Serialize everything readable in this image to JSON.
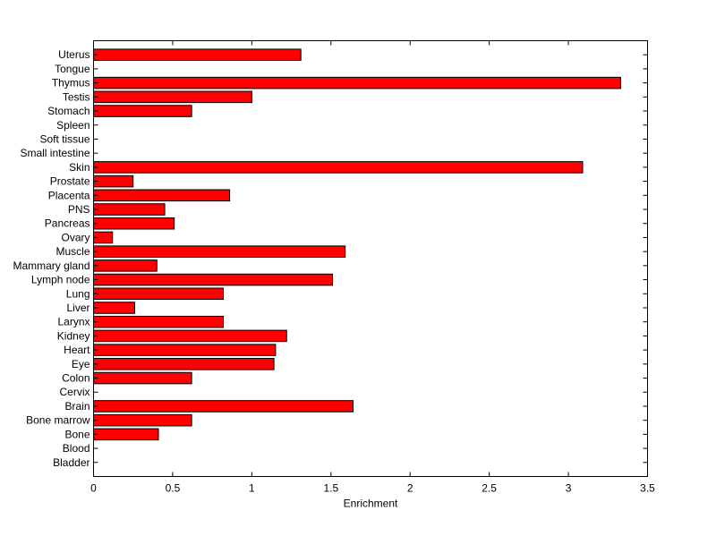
{
  "chart_data": {
    "type": "bar",
    "orientation": "horizontal",
    "title": "",
    "xlabel": "Enrichment",
    "ylabel": "",
    "xlim": [
      0,
      3.5
    ],
    "xticks": [
      0,
      0.5,
      1,
      1.5,
      2,
      2.5,
      3,
      3.5
    ],
    "xtick_labels": [
      "0",
      "0.5",
      "1",
      "1.5",
      "2",
      "2.5",
      "3",
      "3.5"
    ],
    "grid": false,
    "legend": "none",
    "categories": [
      "Bladder",
      "Blood",
      "Bone",
      "Bone marrow",
      "Brain",
      "Cervix",
      "Colon",
      "Eye",
      "Heart",
      "Kidney",
      "Larynx",
      "Liver",
      "Lung",
      "Lymph node",
      "Mammary gland",
      "Muscle",
      "Ovary",
      "Pancreas",
      "PNS",
      "Placenta",
      "Prostate",
      "Skin",
      "Small intestine",
      "Soft tissue",
      "Spleen",
      "Stomach",
      "Testis",
      "Thymus",
      "Tongue",
      "Uterus"
    ],
    "values": [
      0,
      0,
      0.41,
      0.62,
      1.64,
      0,
      0.62,
      1.14,
      1.15,
      1.22,
      0.82,
      0.26,
      0.82,
      1.51,
      0.4,
      1.59,
      0.12,
      0.51,
      0.45,
      0.86,
      0.25,
      3.09,
      0,
      0,
      0,
      0.62,
      1.0,
      3.33,
      0,
      1.31
    ],
    "bar_color": "#ff0000",
    "edge_color": "#000000"
  }
}
